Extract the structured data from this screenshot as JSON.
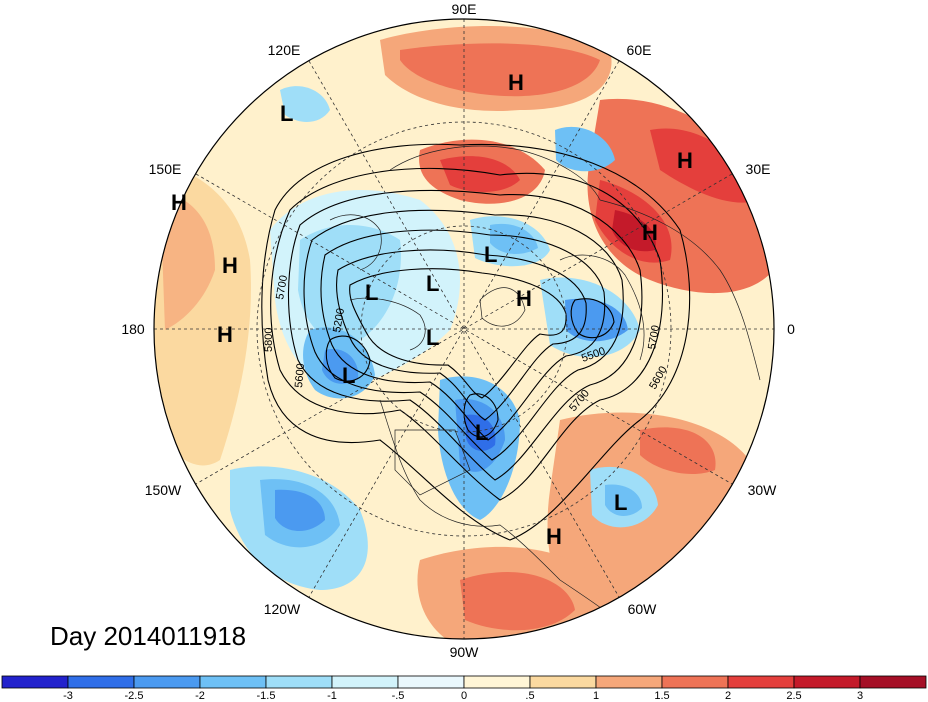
{
  "map": {
    "projection": "polar-stereographic-north",
    "day_label": "Day 2014011918",
    "longitude_labels": [
      "90E",
      "60E",
      "30E",
      "0",
      "30W",
      "60W",
      "90W",
      "120W",
      "150W",
      "180",
      "150E",
      "120E"
    ],
    "contour_labels": [
      "5700",
      "5800",
      "5600",
      "5200",
      "5500",
      "5700",
      "5700",
      "5600"
    ],
    "pressure_centers": [
      {
        "type": "H"
      },
      {
        "type": "L"
      },
      {
        "type": "H"
      },
      {
        "type": "H"
      },
      {
        "type": "H"
      },
      {
        "type": "H"
      },
      {
        "type": "L"
      },
      {
        "type": "L"
      },
      {
        "type": "L"
      },
      {
        "type": "H"
      },
      {
        "type": "L"
      },
      {
        "type": "H"
      },
      {
        "type": "L"
      },
      {
        "type": "L"
      },
      {
        "type": "L"
      },
      {
        "type": "H"
      }
    ]
  },
  "colorbar": {
    "tick_labels": [
      "-3",
      "-2.5",
      "-2",
      "-1.5",
      "-1",
      "-.5",
      "0",
      ".5",
      "1",
      "1.5",
      "2",
      "2.5",
      "3"
    ],
    "colors": [
      "#2222cc",
      "#2f6ee8",
      "#4b9af0",
      "#6ec0f5",
      "#9fdef8",
      "#d2f3fb",
      "#eaf8fd",
      "#fff5d6",
      "#fbd9a0",
      "#f5a77a",
      "#ee7356",
      "#e43f3c",
      "#c41a2a",
      "#a50f26"
    ]
  }
}
